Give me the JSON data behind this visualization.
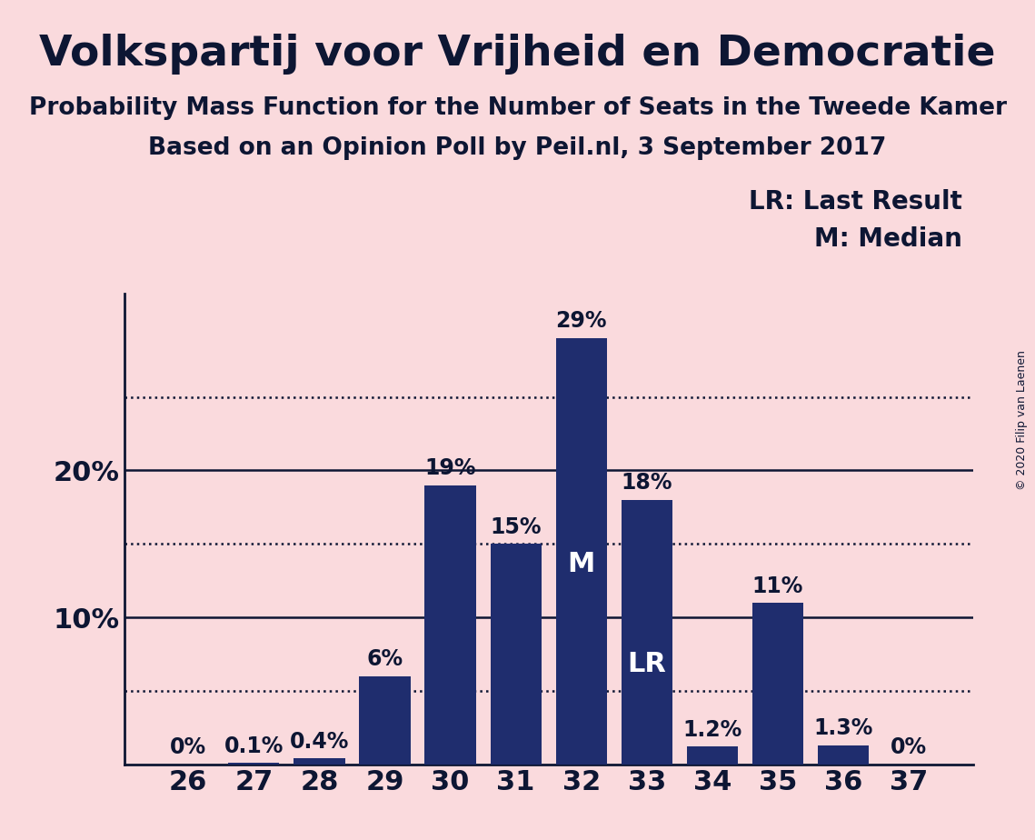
{
  "title": "Volkspartij voor Vrijheid en Democratie",
  "subtitle1": "Probability Mass Function for the Number of Seats in the Tweede Kamer",
  "subtitle2": "Based on an Opinion Poll by Peil.nl, 3 September 2017",
  "copyright": "© 2020 Filip van Laenen",
  "categories": [
    26,
    27,
    28,
    29,
    30,
    31,
    32,
    33,
    34,
    35,
    36,
    37
  ],
  "values": [
    0.0,
    0.1,
    0.4,
    6.0,
    19.0,
    15.0,
    29.0,
    18.0,
    1.2,
    11.0,
    1.3,
    0.0
  ],
  "bar_color": "#1F2D6E",
  "background_color": "#FADADD",
  "label_color": "#0D1633",
  "yticks_show": [
    10,
    20
  ],
  "dotted_yticks": [
    5,
    15,
    25
  ],
  "solid_yticks": [
    10,
    20
  ],
  "ylim": [
    0,
    32
  ],
  "legend_line1": "LR: Last Result",
  "legend_line2": "M: Median",
  "LR_seat": 33,
  "M_seat": 32,
  "bar_label_fontsize": 17,
  "title_fontsize": 34,
  "subtitle_fontsize": 19,
  "axis_tick_fontsize": 22,
  "legend_fontsize": 20,
  "copyright_fontsize": 9,
  "lr_label_fontsize": 22,
  "m_label_fontsize": 22
}
